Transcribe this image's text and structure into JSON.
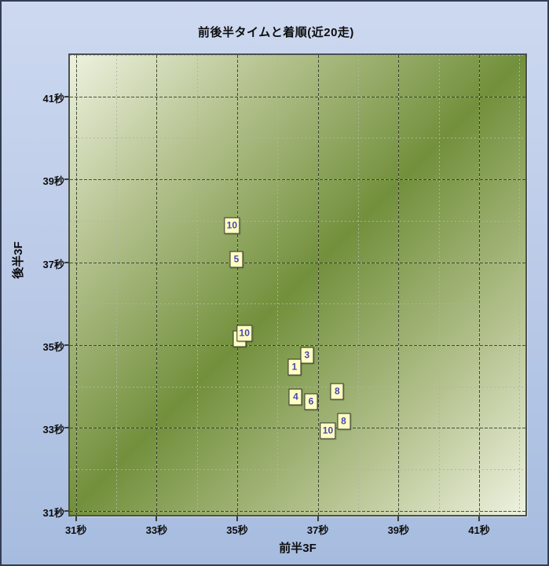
{
  "title": "前後半タイムと着順(近20走)",
  "chart_data": {
    "type": "scatter",
    "title": "前後半タイムと着順(近20走)",
    "xlabel": "前半3F",
    "ylabel": "後半3F",
    "tick_unit": "秒",
    "xlim": [
      30.85,
      42.15
    ],
    "ylim": [
      30.9,
      42.0
    ],
    "x_major_ticks": [
      31,
      33,
      35,
      37,
      39,
      41
    ],
    "x_minor_ticks": [
      32,
      34,
      36,
      38,
      40,
      42
    ],
    "y_major_ticks": [
      31,
      33,
      35,
      37,
      39,
      41
    ],
    "y_minor_ticks": [
      32,
      34,
      36,
      38,
      40,
      42
    ],
    "grid": {
      "major_style": "dashed",
      "minor_style": "dotted"
    },
    "legend": "none",
    "points": [
      {
        "finish_position": "",
        "x": 35.05,
        "y": 35.15,
        "partially_hidden": true
      },
      {
        "finish_position": "10",
        "x": 34.87,
        "y": 37.88
      },
      {
        "finish_position": "5",
        "x": 34.98,
        "y": 37.07
      },
      {
        "finish_position": "10",
        "x": 35.18,
        "y": 35.29
      },
      {
        "finish_position": "3",
        "x": 36.73,
        "y": 34.76
      },
      {
        "finish_position": "1",
        "x": 36.42,
        "y": 34.46
      },
      {
        "finish_position": "8",
        "x": 37.48,
        "y": 33.87
      },
      {
        "finish_position": "4",
        "x": 36.45,
        "y": 33.75
      },
      {
        "finish_position": "6",
        "x": 36.83,
        "y": 33.64
      },
      {
        "finish_position": "8",
        "x": 37.64,
        "y": 33.16
      },
      {
        "finish_position": "10",
        "x": 37.25,
        "y": 32.93
      }
    ],
    "colors": {
      "page_bg_top": "#cdd9f0",
      "page_bg_bottom": "#a6bcdf",
      "page_border": "#333d52",
      "plot_gradient_light": "#edf2df",
      "plot_gradient_dark": "#72903c",
      "plot_border": "#4a5150",
      "major_grid": "#303a1e",
      "minor_grid": "#b0b4a4",
      "point_fill": "#ffffc4",
      "point_border": "#30302a",
      "point_text": "#4848b0",
      "label_text": "#0d0d0d"
    }
  }
}
